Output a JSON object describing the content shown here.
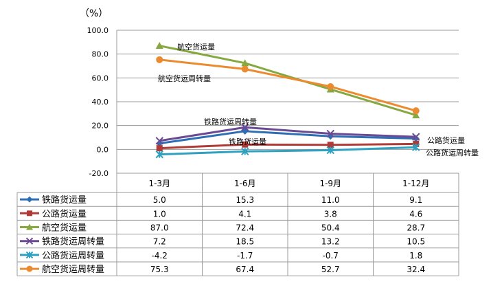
{
  "chart_data": {
    "type": "line",
    "unit_label": "（%）",
    "categories": [
      "1-3月",
      "1-6月",
      "1-9月",
      "1-12月"
    ],
    "ylim": [
      -20,
      100
    ],
    "yticks": [
      "100.0",
      "80.0",
      "60.0",
      "40.0",
      "20.0",
      "0.0",
      "-20.0"
    ],
    "grid": true,
    "legend": "data-table-below",
    "series": [
      {
        "name": "铁路货运量",
        "values": [
          5.0,
          15.3,
          11.0,
          9.1
        ],
        "labels": [
          "5.0",
          "15.3",
          "11.0",
          "9.1"
        ],
        "color": "#2E6EB5",
        "marker": "diamond"
      },
      {
        "name": "公路货运量",
        "values": [
          1.0,
          4.1,
          3.8,
          4.6
        ],
        "labels": [
          "1.0",
          "4.1",
          "3.8",
          "4.6"
        ],
        "color": "#B03A35",
        "marker": "square"
      },
      {
        "name": "航空货运量",
        "values": [
          87.0,
          72.4,
          50.4,
          28.7
        ],
        "labels": [
          "87.0",
          "72.4",
          "50.4",
          "28.7"
        ],
        "color": "#86A83E",
        "marker": "triangle"
      },
      {
        "name": "铁路货运周转量",
        "values": [
          7.2,
          18.5,
          13.2,
          10.5
        ],
        "labels": [
          "7.2",
          "18.5",
          "13.2",
          "10.5"
        ],
        "color": "#6B4A94",
        "marker": "x"
      },
      {
        "name": "公路货运周转量",
        "values": [
          -4.2,
          -1.7,
          -0.7,
          1.8
        ],
        "labels": [
          "-4.2",
          "-1.7",
          "-0.7",
          "1.8"
        ],
        "color": "#2FA0BF",
        "marker": "star"
      },
      {
        "name": "航空货运周转量",
        "values": [
          75.3,
          67.4,
          52.7,
          32.4
        ],
        "labels": [
          "75.3",
          "67.4",
          "52.7",
          "32.4"
        ],
        "color": "#EB8A2F",
        "marker": "circle"
      }
    ],
    "annotations": [
      {
        "text": "航空货运量",
        "series": 2
      },
      {
        "text": "航空货运周转量",
        "series": 5
      },
      {
        "text": "铁路货运周转量",
        "series": 3
      },
      {
        "text": "铁路货运量",
        "series": 0
      },
      {
        "text": "公路货运量",
        "series": 1
      },
      {
        "text": "公路货运周转量",
        "series": 4
      }
    ]
  }
}
